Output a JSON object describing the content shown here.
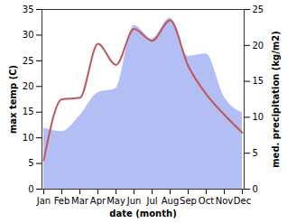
{
  "chart_data": {
    "type": "line",
    "categories": [
      "Jan",
      "Feb",
      "Mar",
      "Apr",
      "May",
      "Jun",
      "Jul",
      "Aug",
      "Sep",
      "Oct",
      "Nov",
      "Dec"
    ],
    "x_label": "date (month)",
    "y_label": "max temp (C)",
    "y2_label": "med. precipitation (kg/m2)",
    "ylim": [
      0,
      35
    ],
    "yticks": [
      0,
      5,
      10,
      15,
      20,
      25,
      30,
      35
    ],
    "y2lim": [
      0,
      25
    ],
    "y2ticks": [
      0,
      5,
      10,
      15,
      20,
      25
    ],
    "grid": false,
    "series": [
      {
        "name": "med. precipitation",
        "type": "area",
        "axis": "y2",
        "color": "#b3bef4",
        "values": [
          8.5,
          8.0,
          10.2,
          13.4,
          14.0,
          22.8,
          20.9,
          23.8,
          18.5,
          18.8,
          12.8,
          10.6
        ]
      },
      {
        "name": "max temp",
        "type": "line",
        "color": "#c0575a",
        "values": [
          5.6,
          17.5,
          17.8,
          28.3,
          24.2,
          31.2,
          28.9,
          32.9,
          24.0,
          18.5,
          14.5,
          11.0
        ]
      }
    ]
  }
}
